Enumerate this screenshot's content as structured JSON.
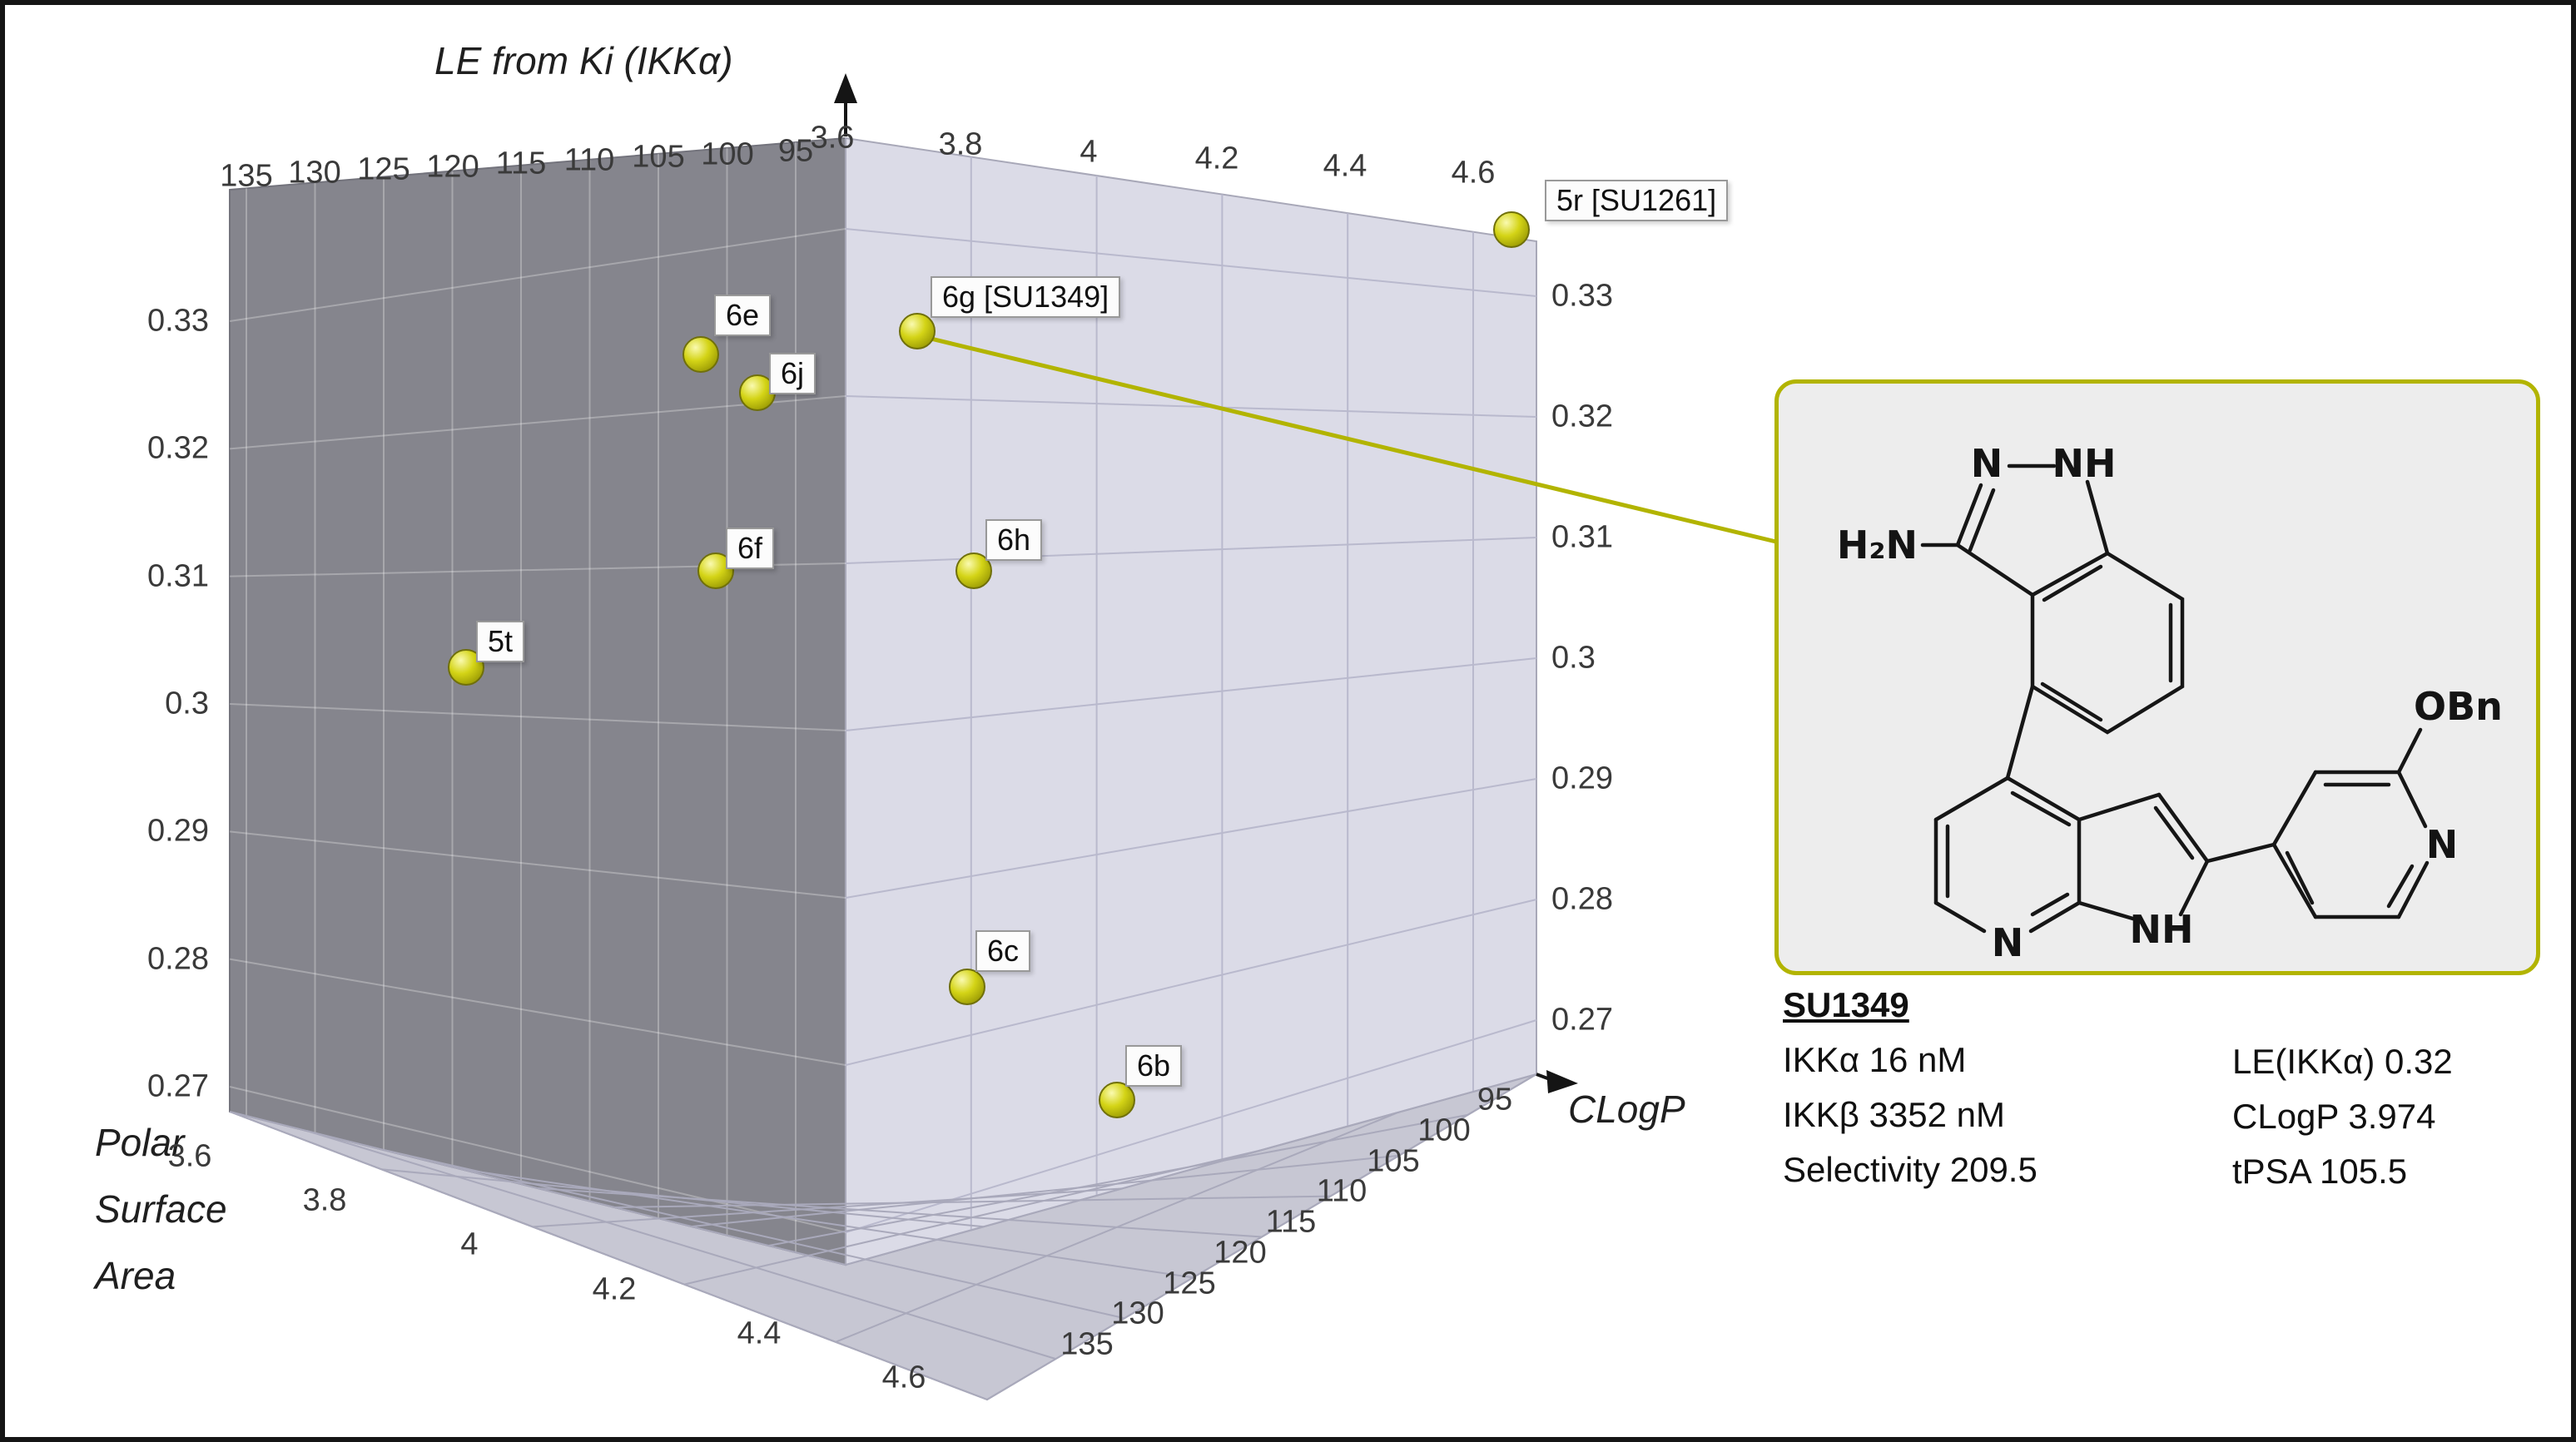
{
  "figure": {
    "vertical_axis_title": "LE from Ki (IKKα)",
    "clogp_axis_title": "CLogP",
    "psa_axis_title_lines": [
      "Polar",
      "Surface",
      "Area"
    ]
  },
  "ticks": {
    "le_left": [
      "0.33",
      "0.32",
      "0.31",
      "0.3",
      "0.29",
      "0.28",
      "0.27"
    ],
    "le_right": [
      "0.33",
      "0.32",
      "0.31",
      "0.3",
      "0.29",
      "0.28",
      "0.27"
    ],
    "psa_top": [
      "135",
      "130",
      "125",
      "120",
      "115",
      "110",
      "105",
      "100",
      "95"
    ],
    "psa_bottom": [
      "135",
      "130",
      "125",
      "120",
      "115",
      "110",
      "105",
      "100",
      "95"
    ],
    "clogp_top": [
      "3.6",
      "3.8",
      "4",
      "4.2",
      "4.4",
      "4.6"
    ],
    "clogp_bottom": [
      "3.6",
      "3.8",
      "4",
      "4.2",
      "4.4",
      "4.6"
    ]
  },
  "point_labels": [
    "6e",
    "6j",
    "6f",
    "5t",
    "6g [SU1349]",
    "6h",
    "6c",
    "6b",
    "5r [SU1261]"
  ],
  "callout": {
    "atoms": {
      "amine": "H₂N",
      "indazole_n": "N",
      "indazole_nh": "NH",
      "azaindole_n": "N",
      "azaindole_nh": "NH",
      "pyridine_n": "N",
      "obn": "OBn"
    },
    "compound_name": "SU1349",
    "props_left": [
      "IKKα 16 nM",
      "IKKβ 3352 nM",
      "Selectivity 209.5"
    ],
    "props_right": [
      "LE(IKKα) 0.32",
      "CLogP 3.974",
      "tPSA 105.5"
    ]
  },
  "chart_data": {
    "type": "scatter",
    "projection": "3d",
    "title": "",
    "axes": {
      "x": {
        "label": "CLogP",
        "range": [
          3.6,
          4.6
        ],
        "ticks": [
          3.6,
          3.8,
          4,
          4.2,
          4.4,
          4.6
        ]
      },
      "y": {
        "label": "Polar Surface Area",
        "range": [
          135,
          95
        ],
        "ticks": [
          135,
          130,
          125,
          120,
          115,
          110,
          105,
          100,
          95
        ]
      },
      "z": {
        "label": "LE from Ki (IKKα)",
        "range": [
          0.27,
          0.33
        ],
        "ticks": [
          0.33,
          0.32,
          0.31,
          0.3,
          0.29,
          0.28,
          0.27
        ]
      }
    },
    "series": [
      {
        "name": "compounds",
        "marker": "sphere",
        "color": "#c6c600",
        "points": [
          {
            "label": "6e",
            "clogp": 3.9,
            "psa": 119,
            "le": 0.325
          },
          {
            "label": "6j",
            "clogp": 3.95,
            "psa": 117,
            "le": 0.322
          },
          {
            "label": "6f",
            "clogp": 3.9,
            "psa": 119,
            "le": 0.31
          },
          {
            "label": "5t",
            "clogp": 3.75,
            "psa": 127,
            "le": 0.302
          },
          {
            "label": "6g [SU1349]",
            "clogp": 3.974,
            "psa": 105.5,
            "le": 0.32
          },
          {
            "label": "6h",
            "clogp": 4.0,
            "psa": 110,
            "le": 0.31
          },
          {
            "label": "6c",
            "clogp": 4.0,
            "psa": 112,
            "le": 0.28
          },
          {
            "label": "6b",
            "clogp": 4.1,
            "psa": 108,
            "le": 0.274
          },
          {
            "label": "5r [SU1261]",
            "clogp": 4.6,
            "psa": 96,
            "le": 0.33
          }
        ]
      }
    ],
    "highlighted_point": {
      "label": "6g [SU1349]",
      "compound": "SU1349",
      "ikka_nm": 16,
      "ikkb_nm": 3352,
      "selectivity": 209.5,
      "le_ikka": 0.32,
      "clogp": 3.974,
      "tpsa": 105.5
    }
  }
}
